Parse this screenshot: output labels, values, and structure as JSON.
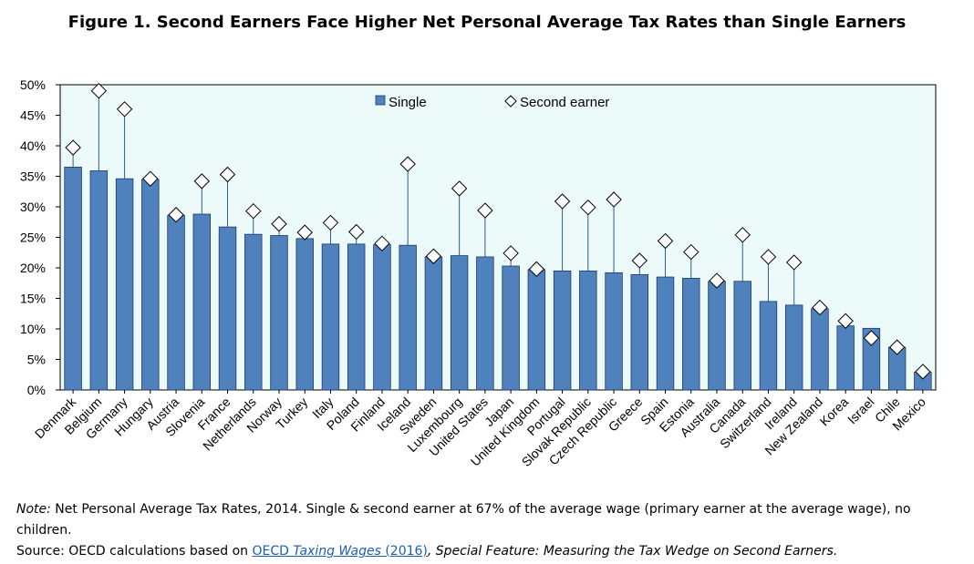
{
  "chart_data": {
    "type": "bar",
    "title": "Figure 1. Second Earners Face Higher Net Personal Average Tax Rates than Single Earners",
    "xlabel": "",
    "ylabel": "",
    "ylim": [
      0,
      50
    ],
    "y_ticks": [
      "0%",
      "5%",
      "10%",
      "15%",
      "20%",
      "25%",
      "30%",
      "35%",
      "40%",
      "45%",
      "50%"
    ],
    "grid": false,
    "legend_position": "top-center",
    "categories": [
      "Denmark",
      "Belgium",
      "Germany",
      "Hungary",
      "Austria",
      "Slovenia",
      "France",
      "Netherlands",
      "Norway",
      "Turkey",
      "Italy",
      "Poland",
      "Finland",
      "Iceland",
      "Sweden",
      "Luxembourg",
      "United States",
      "Japan",
      "United Kingdom",
      "Portugal",
      "Slovak Republic",
      "Czech Republic",
      "Greece",
      "Spain",
      "Estonia",
      "Australia",
      "Canada",
      "Switzerland",
      "Ireland",
      "New Zealand",
      "Korea",
      "Israel",
      "Chile",
      "Mexico"
    ],
    "series": [
      {
        "name": "Single",
        "type": "bar",
        "color": "#4f81bd",
        "values": [
          36.5,
          35.9,
          34.6,
          34.5,
          28.6,
          28.8,
          26.7,
          25.5,
          25.3,
          24.8,
          23.9,
          23.9,
          23.8,
          23.7,
          21.8,
          22.0,
          21.8,
          20.3,
          19.7,
          19.5,
          19.5,
          19.2,
          18.9,
          18.5,
          18.3,
          17.8,
          17.8,
          14.5,
          13.9,
          13.3,
          10.5,
          10.1,
          7.0,
          2.9
        ]
      },
      {
        "name": "Second earner",
        "type": "marker",
        "color": "#ffffff",
        "values": [
          39.7,
          49.0,
          46.0,
          34.6,
          28.7,
          34.2,
          35.3,
          29.3,
          27.2,
          25.8,
          27.4,
          25.9,
          24.0,
          37.0,
          21.9,
          33.0,
          29.4,
          22.4,
          19.8,
          30.9,
          29.9,
          31.2,
          21.2,
          24.4,
          22.6,
          17.9,
          25.4,
          21.8,
          20.9,
          13.5,
          11.3,
          8.5,
          7.0,
          3.0
        ]
      }
    ]
  },
  "notes": {
    "note_label": "Note:",
    "note_text": " Net Personal Average Tax Rates, 2014. Single & second earner at 67% of the average wage (primary earner at the average wage), no children.",
    "source_label": "Source: OECD calculations based on ",
    "source_link_a": "OECD ",
    "source_link_b": "Taxing Wages",
    "source_link_c": " (2016)",
    "source_tail": ", Special Feature: Measuring the Tax Wedge on Second Earners."
  }
}
